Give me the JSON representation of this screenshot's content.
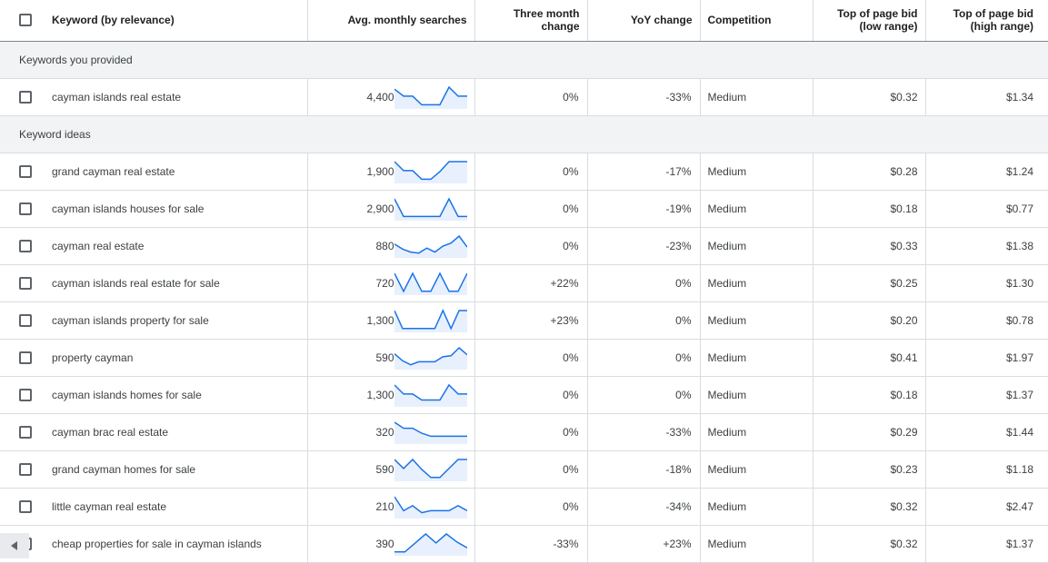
{
  "headers": {
    "keyword": "Keyword (by relevance)",
    "avg": "Avg. monthly searches",
    "three_month_l1": "Three month",
    "three_month_l2": "change",
    "yoy": "YoY change",
    "competition": "Competition",
    "bid_low_l1": "Top of page bid",
    "bid_low_l2": "(low range)",
    "bid_high_l1": "Top of page bid",
    "bid_high_l2": "(high range)"
  },
  "groups": {
    "provided": "Keywords you provided",
    "ideas": "Keyword ideas"
  },
  "provided_rows": [
    {
      "keyword": "cayman islands real estate",
      "avg": "4,400",
      "trend": [
        0.9,
        0.55,
        0.55,
        0.12,
        0.12,
        0.12,
        1.0,
        0.55,
        0.55
      ],
      "three": "0%",
      "yoy": "-33%",
      "comp": "Medium",
      "low": "$0.32",
      "high": "$1.34"
    }
  ],
  "idea_rows": [
    {
      "keyword": "grand cayman real estate",
      "avg": "1,900",
      "trend": [
        1.0,
        0.55,
        0.55,
        0.12,
        0.12,
        0.5,
        1.0,
        1.0,
        1.0
      ],
      "three": "0%",
      "yoy": "-17%",
      "comp": "Medium",
      "low": "$0.28",
      "high": "$1.24"
    },
    {
      "keyword": "cayman islands houses for sale",
      "avg": "2,900",
      "trend": [
        1.0,
        0.12,
        0.12,
        0.12,
        0.12,
        0.12,
        1.0,
        0.12,
        0.12
      ],
      "three": "0%",
      "yoy": "-19%",
      "comp": "Medium",
      "low": "$0.18",
      "high": "$0.77"
    },
    {
      "keyword": "cayman real estate",
      "avg": "880",
      "trend": [
        0.6,
        0.35,
        0.2,
        0.15,
        0.4,
        0.2,
        0.5,
        0.65,
        1.0,
        0.45
      ],
      "three": "0%",
      "yoy": "-23%",
      "comp": "Medium",
      "low": "$0.33",
      "high": "$1.38"
    },
    {
      "keyword": "cayman islands real estate for sale",
      "avg": "720",
      "trend": [
        1.0,
        0.1,
        1.0,
        0.1,
        0.1,
        1.0,
        0.1,
        0.1,
        1.0
      ],
      "three": "+22%",
      "yoy": "0%",
      "comp": "Medium",
      "low": "$0.25",
      "high": "$1.30"
    },
    {
      "keyword": "cayman islands property for sale",
      "avg": "1,300",
      "trend": [
        1.0,
        0.1,
        0.1,
        0.1,
        0.1,
        0.1,
        1.0,
        0.1,
        1.0,
        1.0
      ],
      "three": "+23%",
      "yoy": "0%",
      "comp": "Medium",
      "low": "$0.20",
      "high": "$0.78"
    },
    {
      "keyword": "property cayman",
      "avg": "590",
      "trend": [
        0.7,
        0.35,
        0.15,
        0.3,
        0.3,
        0.3,
        0.55,
        0.6,
        1.0,
        0.65
      ],
      "three": "0%",
      "yoy": "0%",
      "comp": "Medium",
      "low": "$0.41",
      "high": "$1.97"
    },
    {
      "keyword": "cayman islands homes for sale",
      "avg": "1,300",
      "trend": [
        1.0,
        0.55,
        0.55,
        0.25,
        0.25,
        0.25,
        1.0,
        0.55,
        0.55
      ],
      "three": "0%",
      "yoy": "0%",
      "comp": "Medium",
      "low": "$0.18",
      "high": "$1.37"
    },
    {
      "keyword": "cayman brac real estate",
      "avg": "320",
      "trend": [
        1.0,
        0.7,
        0.7,
        0.45,
        0.3,
        0.3,
        0.3,
        0.3,
        0.3
      ],
      "three": "0%",
      "yoy": "-33%",
      "comp": "Medium",
      "low": "$0.29",
      "high": "$1.44"
    },
    {
      "keyword": "grand cayman homes for sale",
      "avg": "590",
      "trend": [
        1.0,
        0.55,
        1.0,
        0.5,
        0.1,
        0.1,
        0.55,
        1.0,
        1.0
      ],
      "three": "0%",
      "yoy": "-18%",
      "comp": "Medium",
      "low": "$0.23",
      "high": "$1.18"
    },
    {
      "keyword": "little cayman real estate",
      "avg": "210",
      "trend": [
        1.0,
        0.3,
        0.55,
        0.2,
        0.3,
        0.3,
        0.3,
        0.55,
        0.3
      ],
      "three": "0%",
      "yoy": "-34%",
      "comp": "Medium",
      "low": "$0.32",
      "high": "$2.47"
    },
    {
      "keyword": "cheap properties for sale in cayman islands",
      "avg": "390",
      "trend": [
        0.1,
        0.1,
        0.55,
        1.0,
        0.55,
        1.0,
        0.6,
        0.3
      ],
      "three": "-33%",
      "yoy": "+23%",
      "comp": "Medium",
      "low": "$0.32",
      "high": "$1.37"
    }
  ],
  "colors": {
    "accent": "#1a73e8",
    "trend_fill": "#e8f0fe",
    "group_bg": "#f1f3f4"
  }
}
